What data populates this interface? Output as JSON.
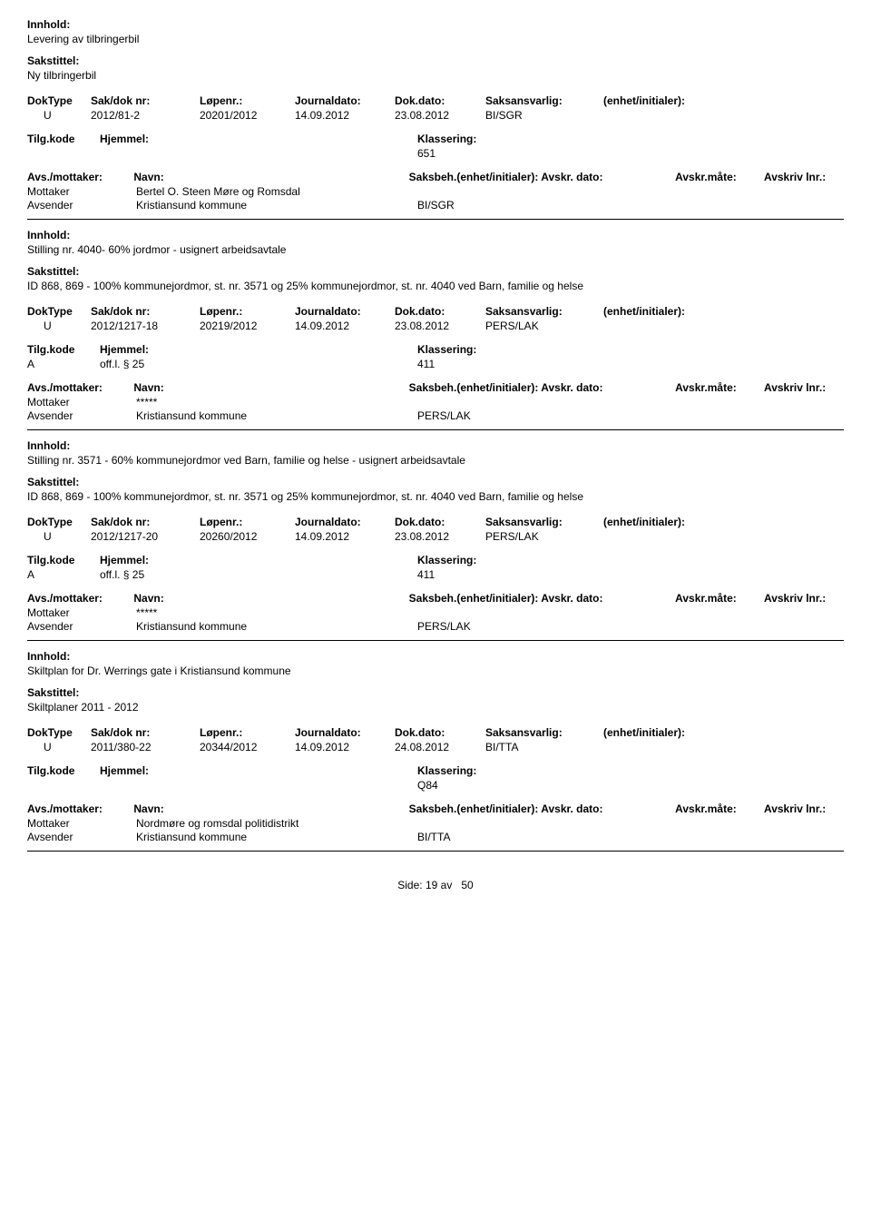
{
  "labels": {
    "innhold": "Innhold:",
    "sakstittel": "Sakstittel:",
    "doktype": "DokType",
    "sakdok": "Sak/dok nr:",
    "lopenr": "Løpenr.:",
    "journaldato": "Journaldato:",
    "dokdato": "Dok.dato:",
    "saksansvarlig": "Saksansvarlig:",
    "enhet": "(enhet/initialer):",
    "tilgkode": "Tilg.kode",
    "hjemmel": "Hjemmel:",
    "klassering": "Klassering:",
    "avsmottaker": "Avs./mottaker:",
    "navn": "Navn:",
    "saksbeh": "Saksbeh.(enhet/initialer): Avskr. dato:",
    "avskrmate": "Avskr.måte:",
    "avskrlnr": "Avskriv lnr.:",
    "mottaker": "Mottaker",
    "avsender": "Avsender",
    "side": "Side:",
    "av": "av"
  },
  "records": [
    {
      "innhold": "Levering av tilbringerbil",
      "sakstittel": "Ny tilbringerbil",
      "doktype": "U",
      "sakdok": "2012/81-2",
      "lopenr": "20201/2012",
      "journaldato": "14.09.2012",
      "dokdato": "23.08.2012",
      "saksansvarlig": "BI/SGR",
      "tilgkode": "",
      "hjemmel": "",
      "klassering": "651",
      "parter": [
        {
          "rolle": "Mottaker",
          "navn": "Bertel O. Steen Møre og Romsdal",
          "saksbeh": ""
        },
        {
          "rolle": "Avsender",
          "navn": "Kristiansund kommune",
          "saksbeh": "BI/SGR"
        }
      ]
    },
    {
      "innhold": "Stilling nr. 4040- 60% jordmor - usignert arbeidsavtale",
      "sakstittel": "ID 868, 869 - 100% kommunejordmor, st. nr. 3571 og 25% kommunejordmor, st. nr. 4040 ved Barn, familie og helse",
      "doktype": "U",
      "sakdok": "2012/1217-18",
      "lopenr": "20219/2012",
      "journaldato": "14.09.2012",
      "dokdato": "23.08.2012",
      "saksansvarlig": "PERS/LAK",
      "tilgkode": "A",
      "hjemmel": "off.l. § 25",
      "klassering": "411",
      "parter": [
        {
          "rolle": "Mottaker",
          "navn": "*****",
          "saksbeh": ""
        },
        {
          "rolle": "Avsender",
          "navn": "Kristiansund kommune",
          "saksbeh": "PERS/LAK"
        }
      ]
    },
    {
      "innhold": "Stilling nr. 3571 - 60% kommunejordmor ved Barn, familie og helse - usignert arbeidsavtale",
      "sakstittel": "ID 868, 869 - 100% kommunejordmor, st. nr. 3571 og 25% kommunejordmor, st. nr. 4040 ved Barn, familie og helse",
      "doktype": "U",
      "sakdok": "2012/1217-20",
      "lopenr": "20260/2012",
      "journaldato": "14.09.2012",
      "dokdato": "23.08.2012",
      "saksansvarlig": "PERS/LAK",
      "tilgkode": "A",
      "hjemmel": "off.l. § 25",
      "klassering": "411",
      "parter": [
        {
          "rolle": "Mottaker",
          "navn": "*****",
          "saksbeh": ""
        },
        {
          "rolle": "Avsender",
          "navn": "Kristiansund kommune",
          "saksbeh": "PERS/LAK"
        }
      ]
    },
    {
      "innhold": "Skiltplan for Dr. Werrings gate i Kristiansund kommune",
      "sakstittel": "Skiltplaner 2011 - 2012",
      "doktype": "U",
      "sakdok": "2011/380-22",
      "lopenr": "20344/2012",
      "journaldato": "14.09.2012",
      "dokdato": "24.08.2012",
      "saksansvarlig": "BI/TTA",
      "tilgkode": "",
      "hjemmel": "",
      "klassering": "Q84",
      "parter": [
        {
          "rolle": "Mottaker",
          "navn": "Nordmøre og romsdal politidistrikt",
          "saksbeh": ""
        },
        {
          "rolle": "Avsender",
          "navn": "Kristiansund kommune",
          "saksbeh": "BI/TTA"
        }
      ]
    }
  ],
  "page": {
    "current": "19",
    "total": "50"
  }
}
